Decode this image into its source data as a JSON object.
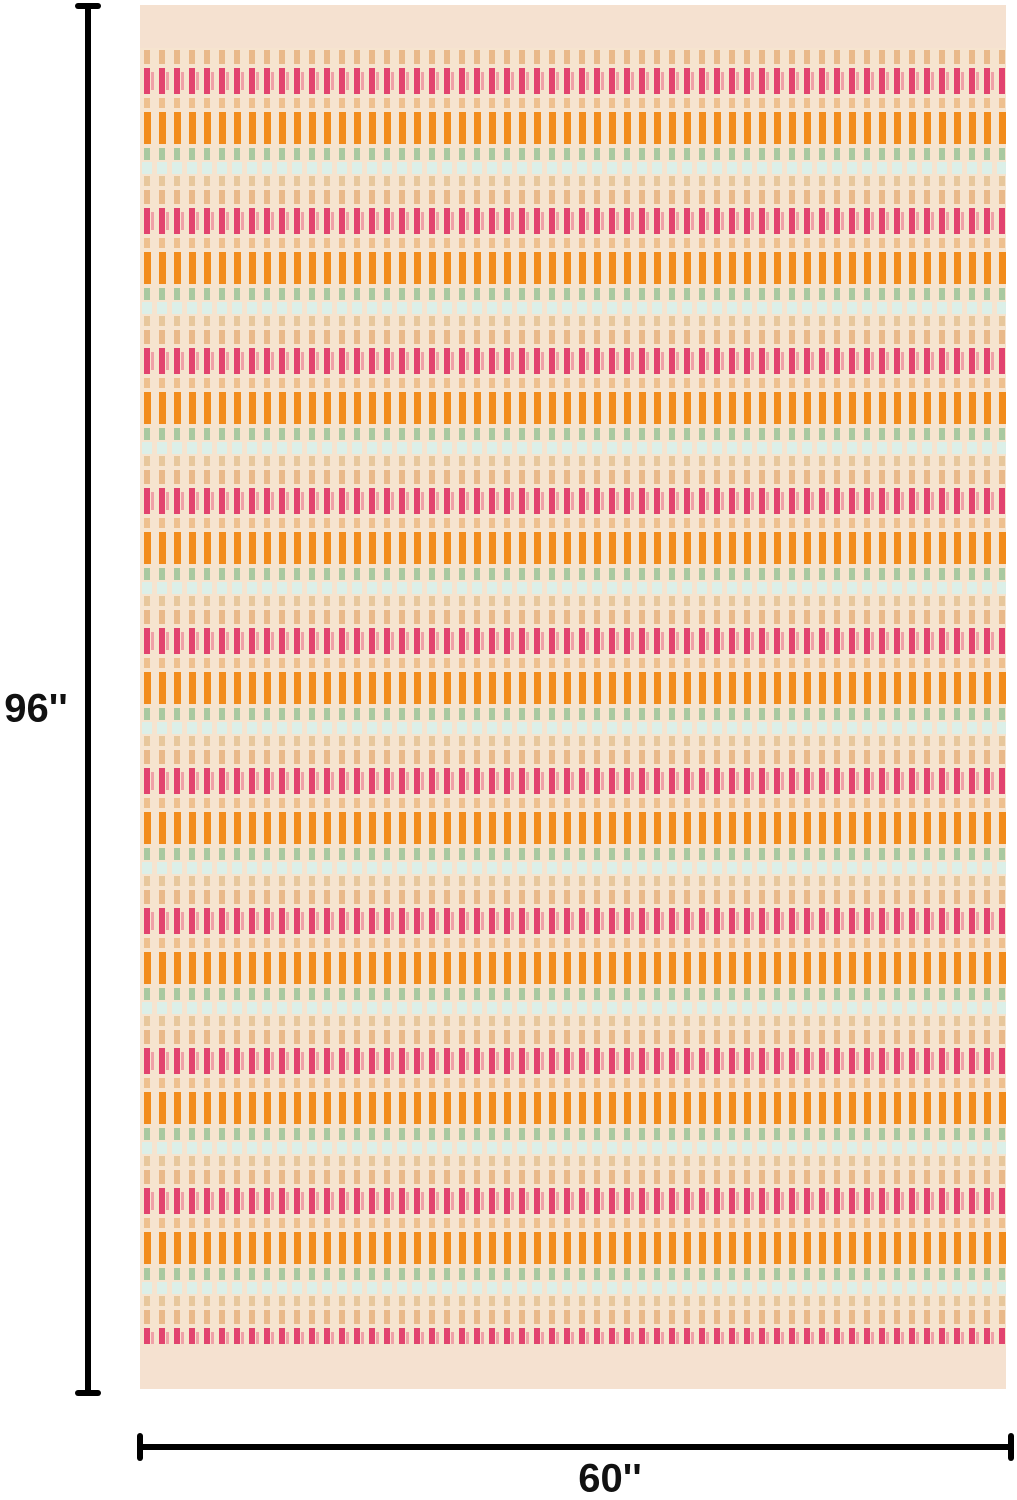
{
  "dimensions": {
    "height": "96''",
    "width": "60''"
  }
}
